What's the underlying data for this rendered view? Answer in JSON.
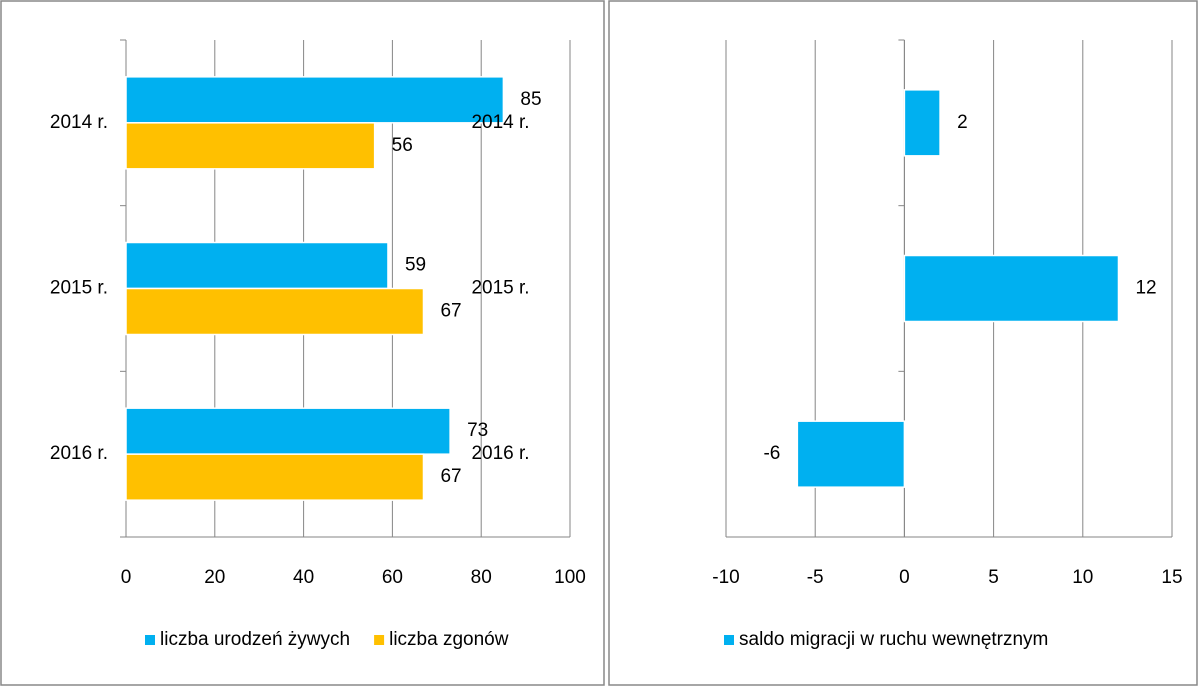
{
  "chart_data": [
    {
      "type": "bar",
      "horizontal": true,
      "categories": [
        "2014 r.",
        "2015 r.",
        "2016 r."
      ],
      "series": [
        {
          "name": "liczba urodzeń żywych",
          "color": "#00b0f0",
          "values": [
            85,
            59,
            73
          ]
        },
        {
          "name": "liczba zgonów",
          "color": "#ffc000",
          "values": [
            56,
            67,
            67
          ]
        }
      ],
      "xlim": [
        0,
        100
      ],
      "xticks": [
        0,
        20,
        40,
        60,
        80,
        100
      ],
      "grid": true,
      "legend": "bottom"
    },
    {
      "type": "bar",
      "horizontal": true,
      "categories": [
        "2014 r.",
        "2015 r.",
        "2016 r."
      ],
      "series": [
        {
          "name": "saldo migracji w ruchu wewnętrznym",
          "color": "#00b0f0",
          "values": [
            2,
            12,
            -6
          ]
        }
      ],
      "xlim": [
        -10,
        15
      ],
      "xticks": [
        -10,
        -5,
        0,
        5,
        10,
        15
      ],
      "grid": true,
      "legend": "bottom"
    }
  ]
}
